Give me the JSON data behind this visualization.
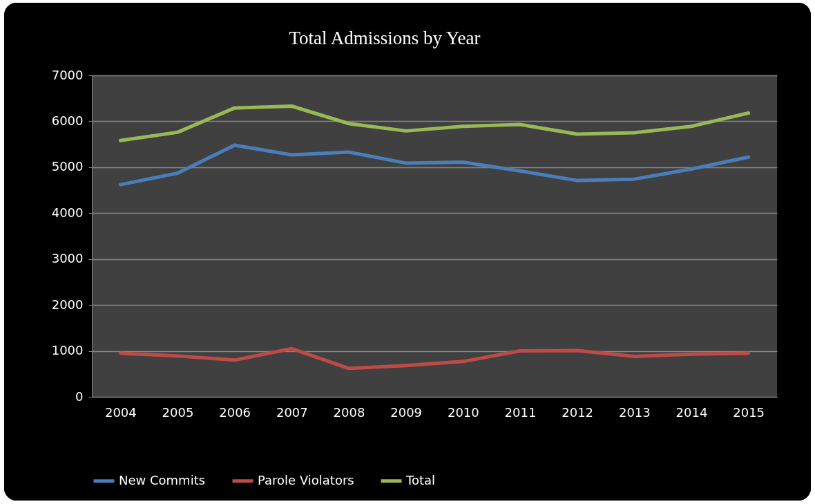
{
  "chart_data": {
    "type": "line",
    "title": "Total Admissions by Year",
    "categories": [
      "2004",
      "2005",
      "2006",
      "2007",
      "2008",
      "2009",
      "2010",
      "2011",
      "2012",
      "2013",
      "2014",
      "2015"
    ],
    "series": [
      {
        "name": "New Commits",
        "color": "#4a7ebb",
        "values": [
          4620,
          4870,
          5480,
          5270,
          5330,
          5090,
          5110,
          4920,
          4710,
          4740,
          4960,
          5220
        ]
      },
      {
        "name": "Parole Violators",
        "color": "#be4b48",
        "values": [
          950,
          890,
          800,
          1050,
          620,
          680,
          770,
          1000,
          1010,
          880,
          930,
          950
        ]
      },
      {
        "name": "Total",
        "color": "#98b954",
        "values": [
          5580,
          5760,
          6290,
          6330,
          5950,
          5790,
          5890,
          5930,
          5720,
          5750,
          5890,
          6180
        ]
      }
    ],
    "ylim": [
      0,
      7000
    ],
    "yticks": [
      0,
      1000,
      2000,
      3000,
      4000,
      5000,
      6000,
      7000
    ],
    "grid": "y",
    "legend": "bottom"
  }
}
